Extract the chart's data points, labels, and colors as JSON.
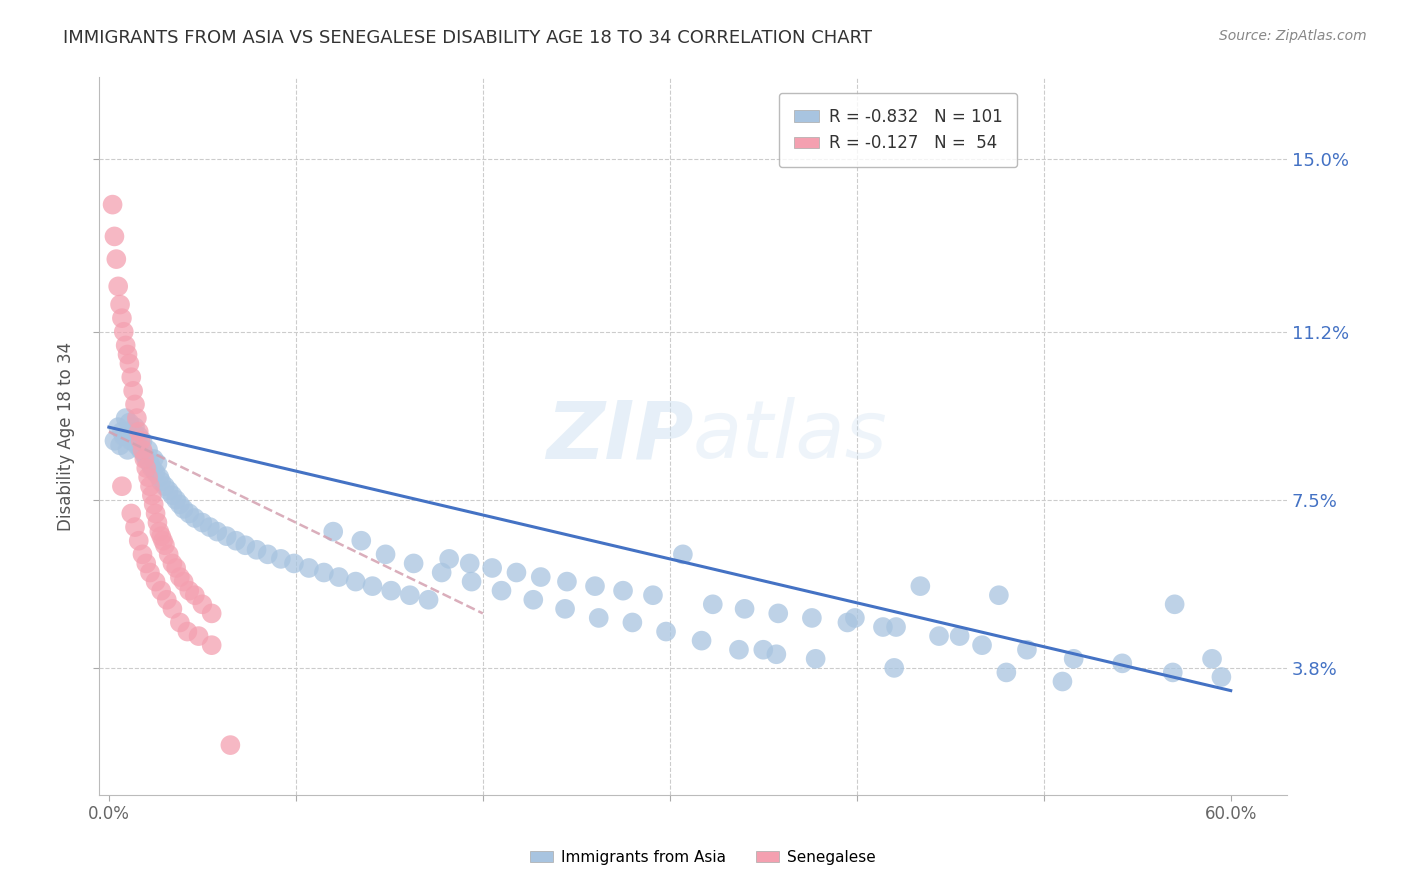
{
  "title": "IMMIGRANTS FROM ASIA VS SENEGALESE DISABILITY AGE 18 TO 34 CORRELATION CHART",
  "source": "Source: ZipAtlas.com",
  "ylabel": "Disability Age 18 to 34",
  "x_tick_labels": [
    "0.0%",
    "",
    "",
    "",
    "",
    "",
    "60.0%"
  ],
  "y_ticks": [
    0.038,
    0.075,
    0.112,
    0.15
  ],
  "y_tick_labels": [
    "3.8%",
    "7.5%",
    "11.2%",
    "15.0%"
  ],
  "xlim": [
    -0.005,
    0.63
  ],
  "ylim": [
    0.01,
    0.168
  ],
  "legend_label_blue": "R = -0.832   N = 101",
  "legend_label_pink": "R = -0.127   N =  54",
  "bottom_legend_blue": "Immigrants from Asia",
  "bottom_legend_pink": "Senegalese",
  "watermark": "ZIPatlas",
  "blue_color": "#a8c4e0",
  "pink_color": "#f4a0b0",
  "blue_line_color": "#4472c4",
  "pink_line_color": "#d4a0b0",
  "grid_color": "#cccccc",
  "title_color": "#333333",
  "axis_label_color": "#555555",
  "right_tick_color": "#4472c4",
  "background_color": "#ffffff",
  "blue_scatter_x": [
    0.003,
    0.005,
    0.006,
    0.007,
    0.008,
    0.009,
    0.01,
    0.011,
    0.012,
    0.013,
    0.014,
    0.015,
    0.016,
    0.017,
    0.018,
    0.019,
    0.02,
    0.021,
    0.022,
    0.023,
    0.024,
    0.025,
    0.026,
    0.027,
    0.028,
    0.03,
    0.032,
    0.034,
    0.036,
    0.038,
    0.04,
    0.043,
    0.046,
    0.05,
    0.054,
    0.058,
    0.063,
    0.068,
    0.073,
    0.079,
    0.085,
    0.092,
    0.099,
    0.107,
    0.115,
    0.123,
    0.132,
    0.141,
    0.151,
    0.161,
    0.171,
    0.182,
    0.193,
    0.205,
    0.218,
    0.231,
    0.245,
    0.26,
    0.275,
    0.291,
    0.307,
    0.323,
    0.34,
    0.358,
    0.376,
    0.395,
    0.414,
    0.434,
    0.455,
    0.476,
    0.12,
    0.135,
    0.148,
    0.163,
    0.178,
    0.194,
    0.21,
    0.227,
    0.244,
    0.262,
    0.28,
    0.298,
    0.317,
    0.337,
    0.357,
    0.378,
    0.399,
    0.421,
    0.444,
    0.467,
    0.491,
    0.516,
    0.542,
    0.569,
    0.57,
    0.59,
    0.595,
    0.35,
    0.42,
    0.48,
    0.51
  ],
  "blue_scatter_y": [
    0.088,
    0.091,
    0.087,
    0.09,
    0.089,
    0.093,
    0.086,
    0.092,
    0.088,
    0.09,
    0.091,
    0.087,
    0.089,
    0.086,
    0.088,
    0.085,
    0.084,
    0.086,
    0.083,
    0.082,
    0.084,
    0.081,
    0.083,
    0.08,
    0.079,
    0.078,
    0.077,
    0.076,
    0.075,
    0.074,
    0.073,
    0.072,
    0.071,
    0.07,
    0.069,
    0.068,
    0.067,
    0.066,
    0.065,
    0.064,
    0.063,
    0.062,
    0.061,
    0.06,
    0.059,
    0.058,
    0.057,
    0.056,
    0.055,
    0.054,
    0.053,
    0.062,
    0.061,
    0.06,
    0.059,
    0.058,
    0.057,
    0.056,
    0.055,
    0.054,
    0.063,
    0.052,
    0.051,
    0.05,
    0.049,
    0.048,
    0.047,
    0.056,
    0.045,
    0.054,
    0.068,
    0.066,
    0.063,
    0.061,
    0.059,
    0.057,
    0.055,
    0.053,
    0.051,
    0.049,
    0.048,
    0.046,
    0.044,
    0.042,
    0.041,
    0.04,
    0.049,
    0.047,
    0.045,
    0.043,
    0.042,
    0.04,
    0.039,
    0.037,
    0.052,
    0.04,
    0.036,
    0.042,
    0.038,
    0.037,
    0.035
  ],
  "pink_scatter_x": [
    0.002,
    0.003,
    0.004,
    0.005,
    0.006,
    0.007,
    0.008,
    0.009,
    0.01,
    0.011,
    0.012,
    0.013,
    0.014,
    0.015,
    0.016,
    0.017,
    0.018,
    0.019,
    0.02,
    0.021,
    0.022,
    0.023,
    0.024,
    0.025,
    0.026,
    0.027,
    0.028,
    0.029,
    0.03,
    0.032,
    0.034,
    0.036,
    0.038,
    0.04,
    0.043,
    0.046,
    0.05,
    0.055,
    0.012,
    0.014,
    0.016,
    0.018,
    0.02,
    0.022,
    0.025,
    0.028,
    0.031,
    0.034,
    0.038,
    0.042,
    0.048,
    0.055,
    0.007,
    0.065
  ],
  "pink_scatter_y": [
    0.14,
    0.133,
    0.128,
    0.122,
    0.118,
    0.115,
    0.112,
    0.109,
    0.107,
    0.105,
    0.102,
    0.099,
    0.096,
    0.093,
    0.09,
    0.088,
    0.086,
    0.084,
    0.082,
    0.08,
    0.078,
    0.076,
    0.074,
    0.072,
    0.07,
    0.068,
    0.067,
    0.066,
    0.065,
    0.063,
    0.061,
    0.06,
    0.058,
    0.057,
    0.055,
    0.054,
    0.052,
    0.05,
    0.072,
    0.069,
    0.066,
    0.063,
    0.061,
    0.059,
    0.057,
    0.055,
    0.053,
    0.051,
    0.048,
    0.046,
    0.045,
    0.043,
    0.078,
    0.021
  ],
  "blue_line_x": [
    0.0,
    0.6
  ],
  "blue_line_y": [
    0.091,
    0.033
  ],
  "pink_line_x": [
    0.0,
    0.2
  ],
  "pink_line_y": [
    0.09,
    0.05
  ]
}
